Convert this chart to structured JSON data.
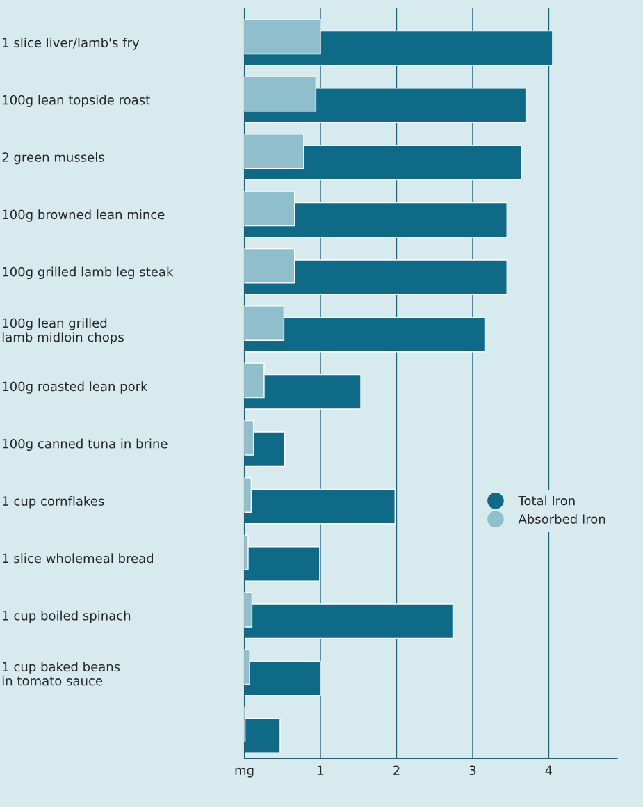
{
  "chart_data": {
    "type": "bar",
    "orientation": "horizontal",
    "categories": [
      "1 slice liver/lamb's fry",
      "100g lean topside roast",
      "2 green mussels",
      "100g browned lean mince",
      "100g grilled lamb leg steak",
      "100g lean grilled\nlamb midloin chops",
      "100g roasted lean pork",
      "100g canned tuna in brine",
      "1 cup cornflakes",
      "1 slice wholemeal bread",
      "1 cup boiled spinach",
      "1 cup baked beans\nin tomato sauce",
      null
    ],
    "series": [
      {
        "name": "Total Iron",
        "color": "#0f6a88",
        "values": [
          4.05,
          3.7,
          3.64,
          3.45,
          3.45,
          3.16,
          1.53,
          0.53,
          1.98,
          0.99,
          2.74,
          1.0,
          0.47
        ]
      },
      {
        "name": "Absorbed Iron",
        "color": "#8fbfcc",
        "values": [
          1.0,
          0.94,
          0.78,
          0.66,
          0.66,
          0.52,
          0.26,
          0.12,
          0.09,
          0.05,
          0.1,
          0.07,
          0.01
        ]
      }
    ],
    "xlim": [
      0,
      4.9
    ],
    "xticks": [
      {
        "value": 0,
        "label": "mg"
      },
      1,
      2,
      3,
      4
    ],
    "grid": "x",
    "legend": "right"
  }
}
